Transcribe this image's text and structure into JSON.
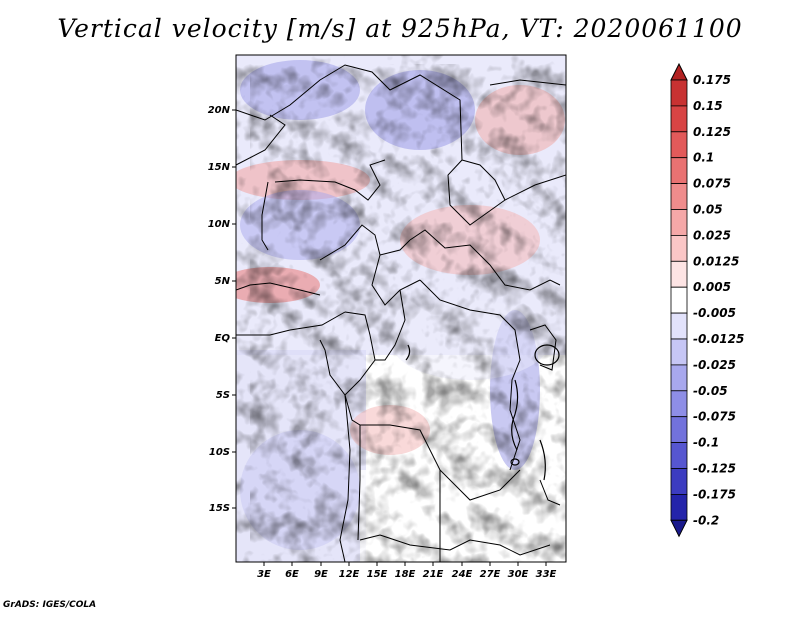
{
  "title": "Vertical velocity [m/s] at 925hPa, VT: 2020061100",
  "credit": "GrADS: IGES/COLA",
  "map": {
    "lat_labels": [
      "20N",
      "15N",
      "10N",
      "5N",
      "EQ",
      "5S",
      "10S",
      "15S"
    ],
    "lon_labels": [
      "3E",
      "6E",
      "9E",
      "12E",
      "15E",
      "18E",
      "21E",
      "24E",
      "27E",
      "30E",
      "33E"
    ]
  },
  "colorbar": {
    "labels": [
      "0.175",
      "0.15",
      "0.125",
      "0.1",
      "0.075",
      "0.05",
      "0.025",
      "0.0125",
      "0.005",
      "-0.005",
      "-0.0125",
      "-0.025",
      "-0.05",
      "-0.075",
      "-0.1",
      "-0.125",
      "-0.175",
      "-0.2"
    ],
    "colors": [
      "#b22222",
      "#c83232",
      "#d84444",
      "#e25a5a",
      "#e97272",
      "#ef8c8c",
      "#f5a8a8",
      "#fac6c6",
      "#fde4e4",
      "#ffffff",
      "#e2e2fb",
      "#c6c6f5",
      "#a8a8ee",
      "#8e8ee6",
      "#7272dc",
      "#5656d0",
      "#3c3cc0",
      "#2424aa",
      "#1a1a8c"
    ]
  }
}
